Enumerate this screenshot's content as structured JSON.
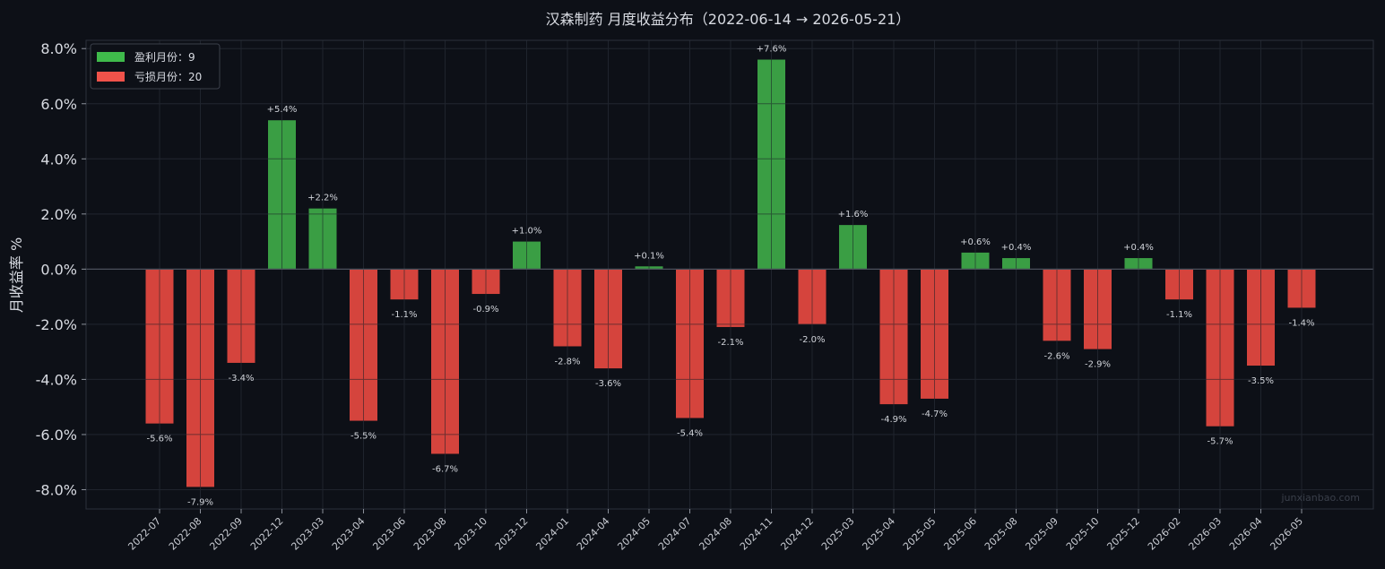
{
  "chart_data": {
    "type": "bar",
    "title": "汉森制药 月度收益分布（2022-06-14 → 2026-05-21）",
    "xlabel": "",
    "ylabel": "月收益率 %",
    "ylim": [
      -8.7,
      8.3
    ],
    "yticks": [
      -8,
      -6,
      -4,
      -2,
      0,
      2,
      4,
      6,
      8
    ],
    "ytick_labels": [
      "-8.0%",
      "-6.0%",
      "-4.0%",
      "-2.0%",
      "0.0%",
      "2.0%",
      "4.0%",
      "6.0%",
      "8.0%"
    ],
    "grid": true,
    "legend_position": "top-left",
    "colors": {
      "profit": "#3a9e44",
      "loss": "#d5443d",
      "background": "#0d1017",
      "grid": "#262b35"
    },
    "legend": [
      {
        "label": "盈利月份：9",
        "color": "#3fba4b"
      },
      {
        "label": "亏损月份：20",
        "color": "#f0524a"
      }
    ],
    "categories": [
      "2022-07",
      "2022-08",
      "2022-09",
      "2022-12",
      "2023-03",
      "2023-04",
      "2023-06",
      "2023-08",
      "2023-10",
      "2023-12",
      "2024-01",
      "2024-04",
      "2024-05",
      "2024-07",
      "2024-08",
      "2024-11",
      "2024-12",
      "2025-03",
      "2025-04",
      "2025-05",
      "2025-06",
      "2025-08",
      "2025-09",
      "2025-10",
      "2025-12",
      "2026-02",
      "2026-03",
      "2026-04",
      "2026-05"
    ],
    "values": [
      -5.6,
      -7.9,
      -3.4,
      5.4,
      2.2,
      -5.5,
      -1.1,
      -6.7,
      -0.9,
      1.0,
      -2.8,
      -3.6,
      0.1,
      -5.4,
      -2.1,
      7.6,
      -2.0,
      1.6,
      -4.9,
      -4.7,
      0.6,
      0.4,
      -2.6,
      -2.9,
      0.4,
      -1.1,
      -5.7,
      -3.5,
      -1.4
    ],
    "labels": [
      "-5.6%",
      "-7.9%",
      "-3.4%",
      "+5.4%",
      "+2.2%",
      "-5.5%",
      "-1.1%",
      "-6.7%",
      "-0.9%",
      "+1.0%",
      "-2.8%",
      "-3.6%",
      "+0.1%",
      "-5.4%",
      "-2.1%",
      "+7.6%",
      "-2.0%",
      "+1.6%",
      "-4.9%",
      "-4.7%",
      "+0.6%",
      "+0.4%",
      "-2.6%",
      "-2.9%",
      "+0.4%",
      "-1.1%",
      "-5.7%",
      "-3.5%",
      "-1.4%"
    ]
  },
  "watermark": "junxianbao.com"
}
